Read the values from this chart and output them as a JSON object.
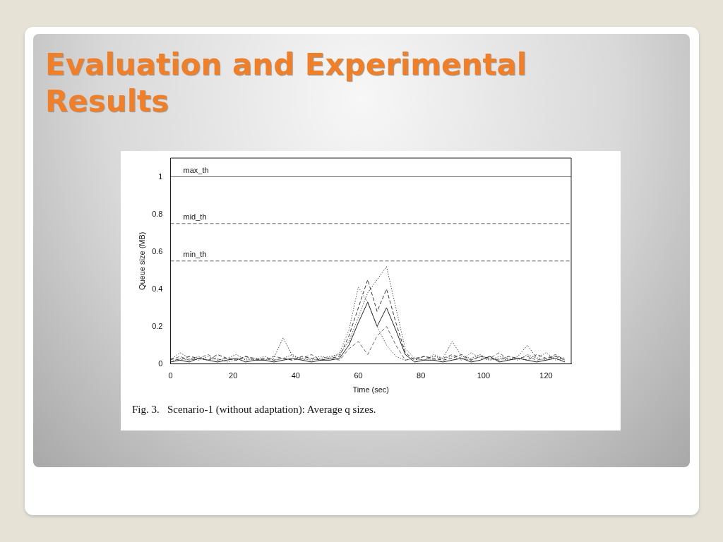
{
  "chart_data": {
    "type": "line",
    "title": "Evaluation and Experimental Results",
    "xlabel": "Time (sec)",
    "ylabel": "Queue size (MB)",
    "x": [
      0,
      3,
      6,
      9,
      12,
      15,
      18,
      21,
      24,
      27,
      30,
      33,
      36,
      39,
      42,
      45,
      48,
      51,
      54,
      57,
      60,
      63,
      66,
      69,
      72,
      75,
      78,
      81,
      84,
      87,
      90,
      93,
      96,
      99,
      102,
      105,
      108,
      111,
      114,
      117,
      120,
      123,
      126
    ],
    "series": [
      {
        "color": "#444444",
        "line_style": "dotted",
        "values": [
          0.02,
          0.06,
          0.03,
          0.02,
          0.04,
          0.02,
          0.03,
          0.05,
          0.02,
          0.03,
          0.02,
          0.03,
          0.14,
          0.04,
          0.03,
          0.02,
          0.03,
          0.04,
          0.05,
          0.12,
          0.25,
          0.38,
          0.45,
          0.52,
          0.3,
          0.08,
          0.03,
          0.02,
          0.04,
          0.03,
          0.12,
          0.04,
          0.03,
          0.05,
          0.02,
          0.03,
          0.02,
          0.04,
          0.1,
          0.03,
          0.02,
          0.04,
          0.03
        ]
      },
      {
        "color": "#555555",
        "line_style": "dotted",
        "values": [
          0.01,
          0.03,
          0.02,
          0.04,
          0.02,
          0.03,
          0.01,
          0.02,
          0.03,
          0.02,
          0.04,
          0.02,
          0.03,
          0.05,
          0.02,
          0.03,
          0.04,
          0.03,
          0.06,
          0.18,
          0.41,
          0.33,
          0.2,
          0.1,
          0.04,
          0.02,
          0.03,
          0.02,
          0.05,
          0.03,
          0.04,
          0.02,
          0.06,
          0.03,
          0.02,
          0.04,
          0.03,
          0.02,
          0.05,
          0.03,
          0.06,
          0.02,
          0.03
        ]
      },
      {
        "color": "#333333",
        "line_style": "dashed",
        "values": [
          0.03,
          0.02,
          0.04,
          0.03,
          0.02,
          0.05,
          0.03,
          0.02,
          0.04,
          0.02,
          0.03,
          0.02,
          0.03,
          0.02,
          0.04,
          0.03,
          0.02,
          0.03,
          0.04,
          0.15,
          0.3,
          0.45,
          0.28,
          0.4,
          0.22,
          0.06,
          0.02,
          0.04,
          0.03,
          0.02,
          0.03,
          0.05,
          0.02,
          0.04,
          0.03,
          0.02,
          0.04,
          0.03,
          0.02,
          0.05,
          0.03,
          0.04,
          0.02
        ]
      },
      {
        "color": "#222222",
        "line_style": "solid",
        "values": [
          0.01,
          0.02,
          0.01,
          0.03,
          0.02,
          0.01,
          0.02,
          0.03,
          0.01,
          0.02,
          0.02,
          0.01,
          0.02,
          0.03,
          0.02,
          0.01,
          0.02,
          0.02,
          0.03,
          0.1,
          0.22,
          0.33,
          0.2,
          0.3,
          0.18,
          0.05,
          0.01,
          0.02,
          0.02,
          0.01,
          0.02,
          0.03,
          0.01,
          0.02,
          0.04,
          0.01,
          0.02,
          0.03,
          0.02,
          0.01,
          0.02,
          0.03,
          0.01
        ]
      },
      {
        "color": "#666666",
        "line_style": "dashed",
        "values": [
          0.02,
          0.04,
          0.02,
          0.03,
          0.05,
          0.02,
          0.03,
          0.02,
          0.04,
          0.03,
          0.02,
          0.04,
          0.03,
          0.02,
          0.03,
          0.05,
          0.02,
          0.03,
          0.02,
          0.08,
          0.12,
          0.05,
          0.15,
          0.2,
          0.1,
          0.02,
          0.03,
          0.04,
          0.02,
          0.03,
          0.05,
          0.03,
          0.02,
          0.04,
          0.03,
          0.06,
          0.02,
          0.03,
          0.04,
          0.02,
          0.03,
          0.05,
          0.02
        ]
      }
    ],
    "xlim": [
      0,
      128
    ],
    "xticks": [
      0,
      20,
      40,
      60,
      80,
      100,
      120
    ],
    "ylim": [
      0,
      1.1
    ],
    "yticks": [
      0,
      0.2,
      0.4,
      0.6,
      0.8,
      1
    ],
    "ref_lines": [
      {
        "axis": "y",
        "value": 1,
        "label": "max_th",
        "color": "#666666",
        "line_style": "solid"
      },
      {
        "axis": "y",
        "value": 0.75,
        "label": "mid_th",
        "color": "#666666",
        "line_style": "dashed"
      },
      {
        "axis": "y",
        "value": 0.55,
        "label": "min_th",
        "color": "#666666",
        "line_style": "dashed"
      }
    ],
    "annotations": [
      "Fig. 3.   Scenario-1 (without adaptation): Average q sizes."
    ],
    "grid": false,
    "legend": false,
    "marker": "none"
  }
}
